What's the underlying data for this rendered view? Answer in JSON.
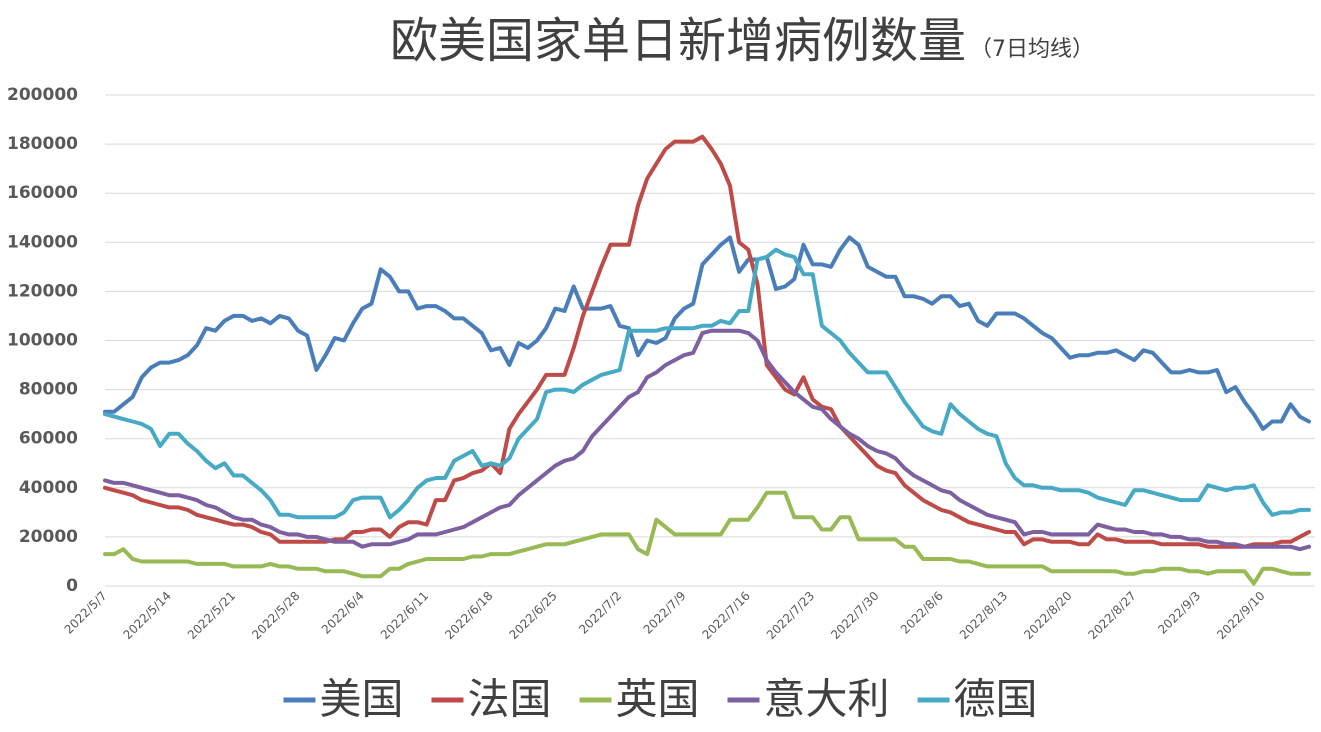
{
  "chart_data": {
    "type": "line",
    "title": "欧美国家单日新增病例数量",
    "subtitle": "（7日均线）",
    "categories": [
      "2022/5/7",
      null,
      null,
      null,
      null,
      null,
      null,
      "2022/5/14",
      null,
      null,
      null,
      null,
      null,
      null,
      "2022/5/21",
      null,
      null,
      null,
      null,
      null,
      null,
      "2022/5/28",
      null,
      null,
      null,
      null,
      null,
      null,
      "2022/6/4",
      null,
      null,
      null,
      null,
      null,
      null,
      "2022/6/11",
      null,
      null,
      null,
      null,
      null,
      null,
      "2022/6/18",
      null,
      null,
      null,
      null,
      null,
      null,
      "2022/6/25",
      null,
      null,
      null,
      null,
      null,
      null,
      "2022/7/2",
      null,
      null,
      null,
      null,
      null,
      null,
      "2022/7/9",
      null,
      null,
      null,
      null,
      null,
      null,
      "2022/7/16",
      null,
      null,
      null,
      null,
      null,
      null,
      "2022/7/23",
      null,
      null,
      null,
      null,
      null,
      null,
      "2022/7/30",
      null,
      null,
      null,
      null,
      null,
      null,
      "2022/8/6",
      null,
      null,
      null,
      null,
      null,
      null,
      "2022/8/13",
      null,
      null,
      null,
      null,
      null,
      null,
      "2022/8/20",
      null,
      null,
      null,
      null,
      null,
      null,
      "2022/8/27",
      null,
      null,
      null,
      null,
      null,
      null,
      "2022/9/3",
      null,
      null,
      null,
      null,
      null,
      null,
      "2022/9/10",
      null,
      null,
      null,
      null,
      null
    ],
    "series": [
      {
        "name": "美国",
        "color": "#4a7ebb",
        "values": [
          71000,
          71000,
          74000,
          77000,
          85000,
          89000,
          91000,
          91000,
          92000,
          94000,
          98000,
          105000,
          104000,
          108000,
          110000,
          110000,
          108000,
          109000,
          107000,
          110000,
          109000,
          104000,
          102000,
          88000,
          94000,
          101000,
          100000,
          107000,
          113000,
          115000,
          129000,
          126000,
          120000,
          120000,
          113000,
          114000,
          114000,
          112000,
          109000,
          109000,
          106000,
          103000,
          96000,
          97000,
          90000,
          99000,
          97000,
          100000,
          105000,
          113000,
          112000,
          122000,
          113000,
          113000,
          113000,
          114000,
          106000,
          105000,
          94000,
          100000,
          99000,
          101000,
          109000,
          113000,
          115000,
          131000,
          135000,
          139000,
          142000,
          128000,
          133000,
          133000,
          134000,
          121000,
          122000,
          125000,
          139000,
          131000,
          131000,
          130000,
          137000,
          142000,
          139000,
          130000,
          128000,
          126000,
          126000,
          118000,
          118000,
          117000,
          115000,
          118000,
          118000,
          114000,
          115000,
          108000,
          106000,
          111000,
          111000,
          111000,
          109000,
          106000,
          103000,
          101000,
          97000,
          93000,
          94000,
          94000,
          95000,
          95000,
          96000,
          94000,
          92000,
          96000,
          95000,
          91000,
          87000,
          87000,
          88000,
          87000,
          87000,
          88000,
          79000,
          81000,
          75000,
          70000,
          64000,
          67000,
          67000,
          74000,
          69000,
          67000
        ]
      },
      {
        "name": "法国",
        "color": "#be4b48",
        "values": [
          40000,
          39000,
          38000,
          37000,
          35000,
          34000,
          33000,
          32000,
          32000,
          31000,
          29000,
          28000,
          27000,
          26000,
          25000,
          25000,
          24000,
          22000,
          21000,
          18000,
          18000,
          18000,
          18000,
          18000,
          18000,
          19000,
          19000,
          22000,
          22000,
          23000,
          23000,
          20000,
          24000,
          26000,
          26000,
          25000,
          35000,
          35000,
          43000,
          44000,
          46000,
          47000,
          50000,
          46000,
          64000,
          70000,
          75000,
          80000,
          86000,
          86000,
          86000,
          97000,
          110000,
          120000,
          130000,
          139000,
          139000,
          139000,
          155000,
          166000,
          172000,
          178000,
          181000,
          181000,
          181000,
          183000,
          178000,
          172000,
          163000,
          140000,
          137000,
          123000,
          90000,
          85000,
          80000,
          78000,
          85000,
          76000,
          73000,
          72000,
          65000,
          61000,
          57000,
          53000,
          49000,
          47000,
          46000,
          41000,
          38000,
          35000,
          33000,
          31000,
          30000,
          28000,
          26000,
          25000,
          24000,
          23000,
          22000,
          22000,
          17000,
          19000,
          19000,
          18000,
          18000,
          18000,
          17000,
          17000,
          21000,
          19000,
          19000,
          18000,
          18000,
          18000,
          18000,
          17000,
          17000,
          17000,
          17000,
          17000,
          16000,
          16000,
          16000,
          16000,
          16000,
          17000,
          17000,
          17000,
          18000,
          18000,
          20000,
          22000
        ]
      },
      {
        "name": "英国",
        "color": "#98b954",
        "values": [
          13000,
          13000,
          15000,
          11000,
          10000,
          10000,
          10000,
          10000,
          10000,
          10000,
          9000,
          9000,
          9000,
          9000,
          8000,
          8000,
          8000,
          8000,
          9000,
          8000,
          8000,
          7000,
          7000,
          7000,
          6000,
          6000,
          6000,
          5000,
          4000,
          4000,
          4000,
          7000,
          7000,
          9000,
          10000,
          11000,
          11000,
          11000,
          11000,
          11000,
          12000,
          12000,
          13000,
          13000,
          13000,
          14000,
          15000,
          16000,
          17000,
          17000,
          17000,
          18000,
          19000,
          20000,
          21000,
          21000,
          21000,
          21000,
          15000,
          13000,
          27000,
          24000,
          21000,
          21000,
          21000,
          21000,
          21000,
          21000,
          27000,
          27000,
          27000,
          32000,
          38000,
          38000,
          38000,
          28000,
          28000,
          28000,
          23000,
          23000,
          28000,
          28000,
          19000,
          19000,
          19000,
          19000,
          19000,
          16000,
          16000,
          11000,
          11000,
          11000,
          11000,
          10000,
          10000,
          9000,
          8000,
          8000,
          8000,
          8000,
          8000,
          8000,
          8000,
          6000,
          6000,
          6000,
          6000,
          6000,
          6000,
          6000,
          6000,
          5000,
          5000,
          6000,
          6000,
          7000,
          7000,
          7000,
          6000,
          6000,
          5000,
          6000,
          6000,
          6000,
          6000,
          1000,
          7000,
          7000,
          6000,
          5000,
          5000,
          5000
        ]
      },
      {
        "name": "意大利",
        "color": "#7d60a0",
        "values": [
          43000,
          42000,
          42000,
          41000,
          40000,
          39000,
          38000,
          37000,
          37000,
          36000,
          35000,
          33000,
          32000,
          30000,
          28000,
          27000,
          27000,
          25000,
          24000,
          22000,
          21000,
          21000,
          20000,
          20000,
          19000,
          18000,
          18000,
          18000,
          16000,
          17000,
          17000,
          17000,
          18000,
          19000,
          21000,
          21000,
          21000,
          22000,
          23000,
          24000,
          26000,
          28000,
          30000,
          32000,
          33000,
          37000,
          40000,
          43000,
          46000,
          49000,
          51000,
          52000,
          55000,
          61000,
          65000,
          69000,
          73000,
          77000,
          79000,
          85000,
          87000,
          90000,
          92000,
          94000,
          95000,
          103000,
          104000,
          104000,
          104000,
          104000,
          103000,
          100000,
          92000,
          87000,
          83000,
          79000,
          76000,
          73000,
          72000,
          68000,
          65000,
          62000,
          60000,
          57000,
          55000,
          54000,
          52000,
          48000,
          45000,
          43000,
          41000,
          39000,
          38000,
          35000,
          33000,
          31000,
          29000,
          28000,
          27000,
          26000,
          21000,
          22000,
          22000,
          21000,
          21000,
          21000,
          21000,
          21000,
          25000,
          24000,
          23000,
          23000,
          22000,
          22000,
          21000,
          21000,
          20000,
          20000,
          19000,
          19000,
          18000,
          18000,
          17000,
          17000,
          16000,
          16000,
          16000,
          16000,
          16000,
          16000,
          15000,
          16000
        ]
      },
      {
        "name": "德国",
        "color": "#46aac5",
        "values": [
          70000,
          69000,
          68000,
          67000,
          66000,
          64000,
          57000,
          62000,
          62000,
          58000,
          55000,
          51000,
          48000,
          50000,
          45000,
          45000,
          42000,
          39000,
          35000,
          29000,
          29000,
          28000,
          28000,
          28000,
          28000,
          28000,
          30000,
          35000,
          36000,
          36000,
          36000,
          28000,
          31000,
          35000,
          40000,
          43000,
          44000,
          44000,
          51000,
          53000,
          55000,
          49000,
          50000,
          49000,
          52000,
          60000,
          64000,
          68000,
          79000,
          80000,
          80000,
          79000,
          82000,
          84000,
          86000,
          87000,
          88000,
          104000,
          104000,
          104000,
          104000,
          105000,
          105000,
          105000,
          105000,
          106000,
          106000,
          108000,
          107000,
          112000,
          112000,
          133000,
          134000,
          137000,
          135000,
          134000,
          127000,
          127000,
          106000,
          103000,
          100000,
          95000,
          91000,
          87000,
          87000,
          87000,
          81000,
          75000,
          70000,
          65000,
          63000,
          62000,
          74000,
          70000,
          67000,
          64000,
          62000,
          61000,
          50000,
          44000,
          41000,
          41000,
          40000,
          40000,
          39000,
          39000,
          39000,
          38000,
          36000,
          35000,
          34000,
          33000,
          39000,
          39000,
          38000,
          37000,
          36000,
          35000,
          35000,
          35000,
          41000,
          40000,
          39000,
          40000,
          40000,
          41000,
          34000,
          29000,
          30000,
          30000,
          31000,
          31000
        ]
      }
    ],
    "ylim": [
      0,
      200000
    ],
    "yticks": [
      0,
      20000,
      40000,
      60000,
      80000,
      100000,
      120000,
      140000,
      160000,
      180000,
      200000
    ],
    "grid": true,
    "legend": "bottom"
  }
}
